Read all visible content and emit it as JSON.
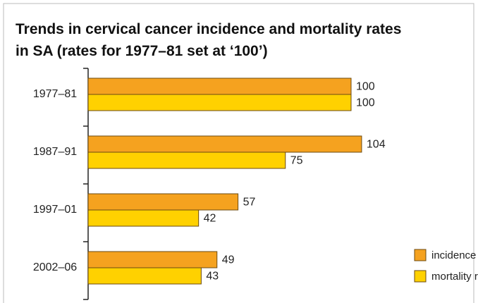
{
  "chart_data": {
    "type": "hbar",
    "title": [
      "Trends in cervical cancer incidence and mortality rates",
      "in SA (rates for 1977–81 set at ‘100’)"
    ],
    "categories": [
      "1977–81",
      "1987–91",
      "1997–01",
      "2002–06"
    ],
    "series": [
      {
        "name": "incidence rates",
        "color": "#f5a21f",
        "values": [
          100,
          104,
          57,
          49
        ]
      },
      {
        "name": "mortality rates",
        "color": "#ffd100",
        "values": [
          100,
          75,
          42,
          43
        ]
      }
    ],
    "legend": "lower right"
  }
}
